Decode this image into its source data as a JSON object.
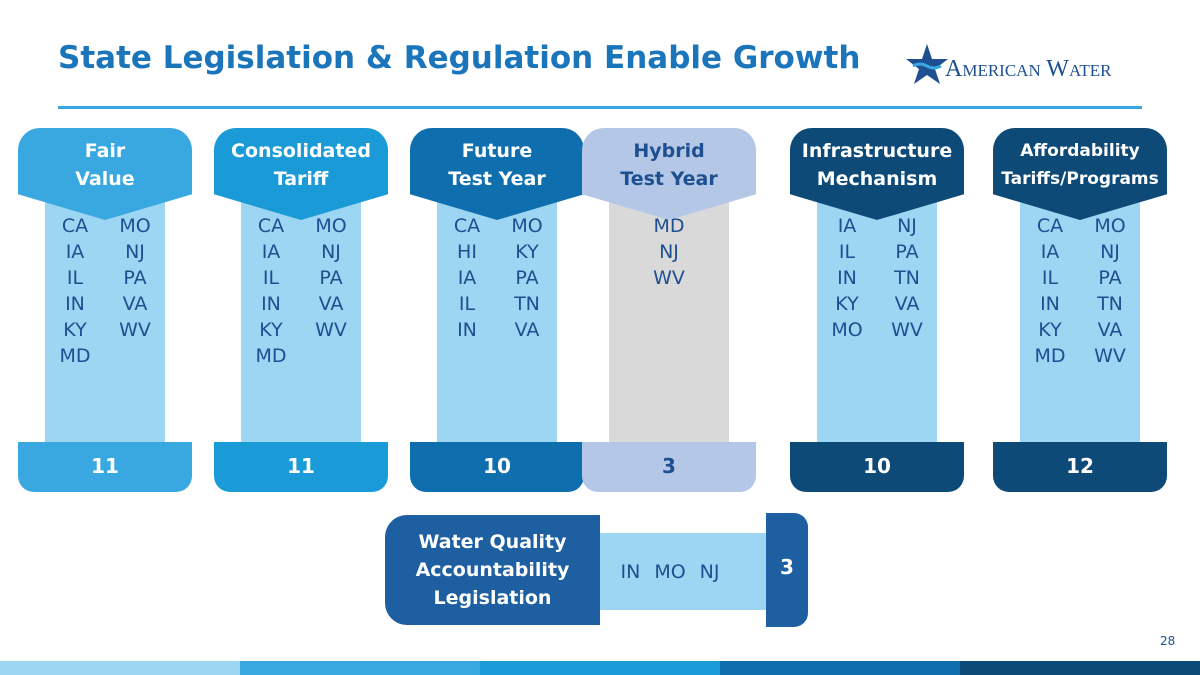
{
  "header": {
    "title": "State Legislation & Regulation Enable Growth",
    "logo_text": "American Water"
  },
  "columns": [
    {
      "title_lines": [
        "Fair",
        "Value"
      ],
      "states": [
        "CA",
        "MO",
        "IA",
        "NJ",
        "IL",
        "PA",
        "IN",
        "VA",
        "KY",
        "WV",
        "MD"
      ],
      "count": 11
    },
    {
      "title_lines": [
        "Consolidated",
        "Tariff"
      ],
      "states": [
        "CA",
        "MO",
        "IA",
        "NJ",
        "IL",
        "PA",
        "IN",
        "VA",
        "KY",
        "WV",
        "MD"
      ],
      "count": 11
    },
    {
      "title_lines": [
        "Future",
        "Test Year"
      ],
      "states": [
        "CA",
        "MO",
        "HI",
        "KY",
        "IA",
        "PA",
        "IL",
        "TN",
        "IN",
        "VA"
      ],
      "count": 10
    },
    {
      "title_lines": [
        "Hybrid",
        "Test Year"
      ],
      "states": [
        "MD",
        "NJ",
        "WV"
      ],
      "count": 3
    },
    {
      "title_lines": [
        "Infrastructure",
        "Mechanism"
      ],
      "states": [
        "IA",
        "NJ",
        "IL",
        "PA",
        "IN",
        "TN",
        "KY",
        "VA",
        "MO",
        "WV"
      ],
      "count": 10
    },
    {
      "title_lines": [
        "Affordability",
        "Tariffs/Programs"
      ],
      "states": [
        "CA",
        "MO",
        "IA",
        "NJ",
        "IL",
        "PA",
        "IN",
        "TN",
        "KY",
        "VA",
        "MD",
        "WV"
      ],
      "count": 12
    }
  ],
  "water_quality": {
    "title_lines": [
      "Water Quality",
      "Accountability",
      "Legislation"
    ],
    "states": [
      "IN",
      "MO",
      "NJ"
    ],
    "count": 3
  },
  "page_number": 28
}
